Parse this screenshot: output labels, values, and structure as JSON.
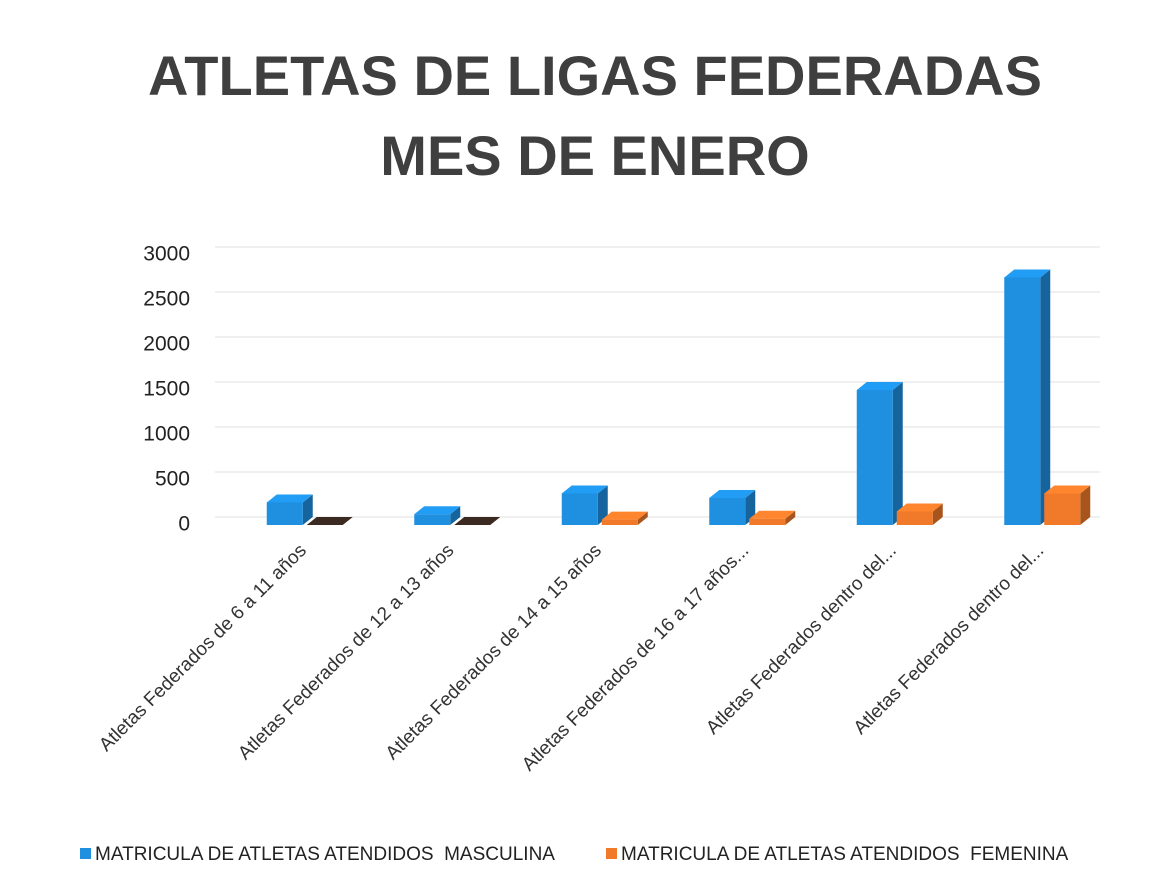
{
  "chart_data": {
    "type": "bar3d",
    "title": [
      "ATLETAS DE LIGAS FEDERADAS",
      "MES DE ENERO"
    ],
    "categories": [
      "Atletas Federados de 6 a 11 años",
      "Atletas Federados de 12 a 13 años",
      "Atletas Federados de 14 a 15 años",
      "Atletas Federados de 16 a 17 años...",
      "Atletas Federados dentro del...",
      "Atletas Federados dentro del..."
    ],
    "series": [
      {
        "name": "MATRICULA DE ATLETAS ATENDIDOS  MASCULINA",
        "color": "#1f8fe0",
        "values": [
          250,
          120,
          350,
          300,
          1500,
          2750
        ]
      },
      {
        "name": "MATRICULA DE ATLETAS ATENDIDOS  FEMENINA",
        "color": "#f07a2a",
        "values": [
          0,
          0,
          60,
          70,
          150,
          350
        ]
      }
    ],
    "ylim": [
      0,
      3000
    ],
    "yticks": [
      0,
      500,
      1000,
      1500,
      2000,
      2500,
      3000
    ],
    "grid": true,
    "legend": "bottom"
  }
}
